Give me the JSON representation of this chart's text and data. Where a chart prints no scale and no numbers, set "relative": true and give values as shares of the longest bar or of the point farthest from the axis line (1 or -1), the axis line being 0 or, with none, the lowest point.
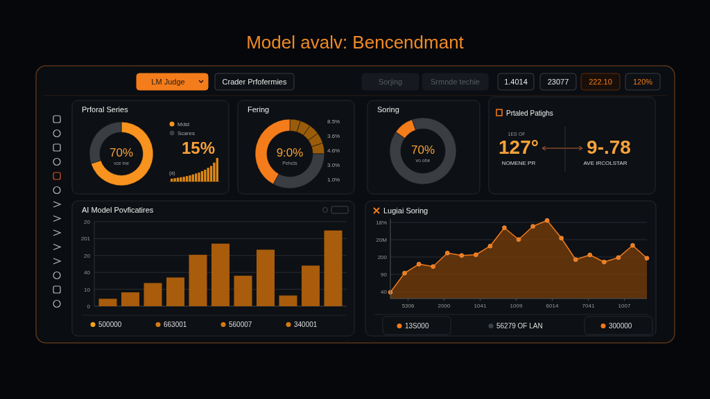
{
  "chart_data": [
    {
      "type": "other",
      "title": "Model avalv: Bencendmant",
      "annotations": [
        "LM Judge",
        "Crader Prfofermies",
        "Sorjing",
        "Srmnde techie",
        "1.4014",
        "23077",
        "222.10",
        "120%"
      ]
    },
    {
      "type": "donut",
      "title": "Prforal Series",
      "categories": [
        "Mdst",
        "Scares"
      ],
      "values": [
        70,
        30
      ],
      "colors": [
        "#f7931e",
        "#3a3d42"
      ],
      "legend": "right",
      "annotations": [
        "70%",
        "vce ine"
      ]
    },
    {
      "type": "bar",
      "relative": true,
      "categories": [
        null,
        null,
        null,
        null,
        null,
        null,
        null,
        null,
        null,
        null,
        null,
        null,
        null,
        null,
        null,
        null
      ],
      "values": [
        0.12,
        0.14,
        0.16,
        0.18,
        0.2,
        0.23,
        0.26,
        0.3,
        0.34,
        0.38,
        0.44,
        0.5,
        0.58,
        0.66,
        0.8,
        1.0
      ],
      "color": "#e08a16",
      "annotations": [
        "15%",
        "(a)"
      ]
    },
    {
      "type": "donut",
      "title": "Fering",
      "categories": [
        null,
        null,
        null,
        null,
        null,
        null,
        null
      ],
      "values": [
        5,
        5,
        5,
        5,
        5,
        33,
        42
      ],
      "colors": [
        "#9a5c0a",
        "#9a5c0a",
        "#9a5c0a",
        "#9a5c0a",
        "#9a5c0a",
        "#3a3d42",
        "#f57c1a"
      ],
      "annotations": [
        "9:0%",
        "Pehcts",
        "8.5%",
        "3.6%",
        "4.6%",
        "3.0%",
        "1.0%"
      ]
    },
    {
      "type": "donut",
      "title": "Soring",
      "categories": [
        null,
        null
      ],
      "values": [
        10,
        90
      ],
      "colors": [
        "#f57c1a",
        "#3a3d42"
      ],
      "annotations": [
        "70%",
        "vo obe"
      ]
    },
    {
      "type": "other",
      "title": "Prtaled Patighs",
      "annotations": [
        "1ES OF",
        "127°",
        "NOMENE PR",
        "9-.78",
        "AVE IRCOLSTAR"
      ]
    },
    {
      "type": "bar",
      "relative": true,
      "title": "AI Model Povficatires",
      "categories": [
        null,
        null,
        null,
        null,
        null,
        null,
        null,
        null,
        null,
        null,
        null
      ],
      "values": [
        0.098,
        0.183,
        0.306,
        0.379,
        0.679,
        0.826,
        0.402,
        0.746,
        0.141,
        0.536,
        1.0
      ],
      "color": "#a85c0c",
      "grid": "y",
      "annotations": [
        "500000",
        "663001",
        "560007",
        "340001",
        "0",
        "10",
        "40",
        "20",
        "201",
        "20"
      ]
    },
    {
      "type": "area",
      "relative": true,
      "title": "Lugiai Soring",
      "categories": [
        null,
        null,
        null,
        null,
        null,
        null,
        null,
        null,
        null,
        null,
        null,
        null,
        null,
        null,
        null,
        null,
        null,
        null,
        null
      ],
      "values": [
        0.08,
        0.326,
        0.441,
        0.41,
        0.583,
        0.552,
        0.561,
        0.672,
        0.907,
        0.756,
        0.925,
        1.0,
        0.774,
        0.499,
        0.559,
        0.468,
        0.525,
        0.681,
        0.517
      ],
      "color": "#f07a1a",
      "marker": "circle",
      "grid": "y",
      "annotations": [
        "13S000",
        "56279 OF LAN",
        "300000",
        "40",
        "90",
        "200",
        "20M",
        "18%",
        "5306",
        "2000",
        "1041",
        "1009",
        "6014",
        "7041",
        "1007"
      ]
    }
  ]
}
